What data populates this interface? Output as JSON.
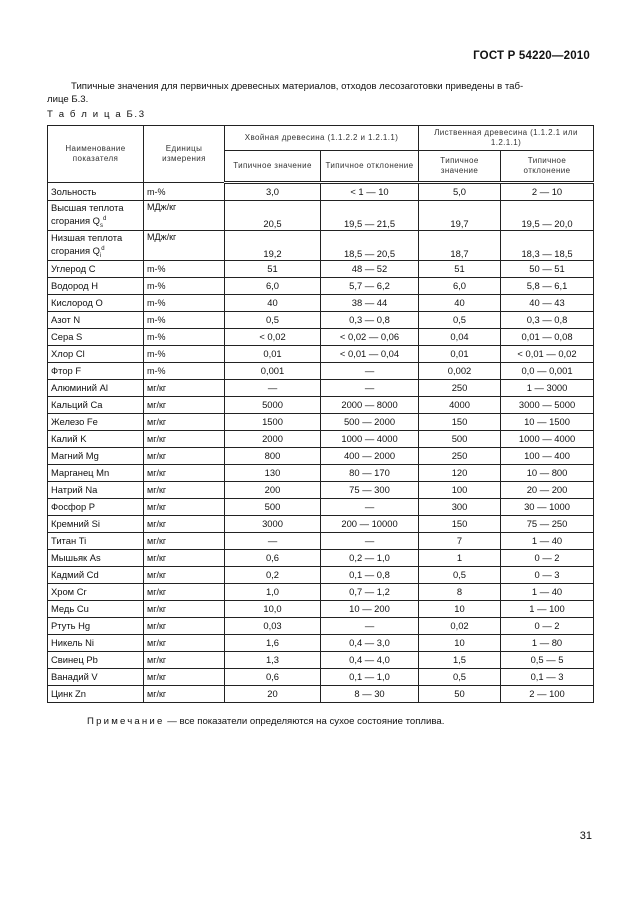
{
  "header": {
    "standard": "ГОСТ Р 54220—2010"
  },
  "intro": {
    "text": "Типичные значения  для первичных древесных материалов, отходов лесозаготовки приведены в таб-",
    "text2": "лице Б.3."
  },
  "table": {
    "caption": "Т а б л и ц а Б.3",
    "headers": {
      "name": "Наименование показателя",
      "unit": "Единицы измерения",
      "coniferous": "Хвойная древесина (1.1.2.2 и 1.2.1.1)",
      "deciduous": "Лиственная древесина (1.1.2.1 или 1.2.1.1)",
      "typical_value": "Типичное значение",
      "typical_deviation": "Типичное отклонение"
    },
    "rows": [
      {
        "name": "Зольность",
        "unit": "m-%",
        "c_val": "3,0",
        "c_dev": "< 1 — 10",
        "d_val": "5,0",
        "d_dev": "2 — 10"
      },
      {
        "name": "Высшая теплота сгорания Q",
        "sub": "s",
        "sup": "d",
        "unit": "МДж/кг",
        "c_val": "20,5",
        "c_dev": "19,5 — 21,5",
        "d_val": "19,7",
        "d_dev": "19,5 — 20,0"
      },
      {
        "name": "Низшая теплота сгорания Q",
        "sub": "i",
        "sup": "d",
        "unit": "МДж/кг",
        "c_val": "19,2",
        "c_dev": "18,5 — 20,5",
        "d_val": "18,7",
        "d_dev": "18,3 — 18,5"
      },
      {
        "name": "Углерод C",
        "unit": "m-%",
        "c_val": "51",
        "c_dev": "48 — 52",
        "d_val": "51",
        "d_dev": "50 — 51"
      },
      {
        "name": "Водород H",
        "unit": "m-%",
        "c_val": "6,0",
        "c_dev": "5,7 — 6,2",
        "d_val": "6,0",
        "d_dev": "5,8 — 6,1"
      },
      {
        "name": "Кислород O",
        "unit": "m-%",
        "c_val": "40",
        "c_dev": "38 — 44",
        "d_val": "40",
        "d_dev": "40 — 43"
      },
      {
        "name": "Азот N",
        "unit": "m-%",
        "c_val": "0,5",
        "c_dev": "0,3 — 0,8",
        "d_val": "0,5",
        "d_dev": "0,3 — 0,8"
      },
      {
        "name": "Сера S",
        "unit": "m-%",
        "c_val": "< 0,02",
        "c_dev": "< 0,02 — 0,06",
        "d_val": "0,04",
        "d_dev": "0,01 — 0,08"
      },
      {
        "name": "Хлор Cl",
        "unit": "m-%",
        "c_val": "0,01",
        "c_dev": "< 0,01 — 0,04",
        "d_val": "0,01",
        "d_dev": "< 0,01 — 0,02"
      },
      {
        "name": "Фтор F",
        "unit": "m-%",
        "c_val": "0,001",
        "c_dev": "—",
        "d_val": "0,002",
        "d_dev": "0,0 — 0,001"
      },
      {
        "name": "Алюминий Al",
        "unit": "мг/кг",
        "c_val": "—",
        "c_dev": "—",
        "d_val": "250",
        "d_dev": "1 — 3000"
      },
      {
        "name": "Кальций Ca",
        "unit": "мг/кг",
        "c_val": "5000",
        "c_dev": "2000 — 8000",
        "d_val": "4000",
        "d_dev": "3000 — 5000"
      },
      {
        "name": "Железо Fe",
        "unit": "мг/кг",
        "c_val": "1500",
        "c_dev": "500 — 2000",
        "d_val": "150",
        "d_dev": "10 — 1500"
      },
      {
        "name": "Калий K",
        "unit": "мг/кг",
        "c_val": "2000",
        "c_dev": "1000 — 4000",
        "d_val": "500",
        "d_dev": "1000 — 4000"
      },
      {
        "name": "Магний Mg",
        "unit": "мг/кг",
        "c_val": "800",
        "c_dev": "400 — 2000",
        "d_val": "250",
        "d_dev": "100 — 400"
      },
      {
        "name": "Марганец Mn",
        "unit": "мг/кг",
        "c_val": "130",
        "c_dev": "80 — 170",
        "d_val": "120",
        "d_dev": "10 — 800"
      },
      {
        "name": "Натрий Na",
        "unit": "мг/кг",
        "c_val": "200",
        "c_dev": "75 — 300",
        "d_val": "100",
        "d_dev": "20 — 200"
      },
      {
        "name": "Фосфор P",
        "unit": "мг/кг",
        "c_val": "500",
        "c_dev": "—",
        "d_val": "300",
        "d_dev": "30 — 1000"
      },
      {
        "name": "Кремний Si",
        "unit": "мг/кг",
        "c_val": "3000",
        "c_dev": "200 — 10000",
        "d_val": "150",
        "d_dev": "75 — 250"
      },
      {
        "name": "Титан Ti",
        "unit": "мг/кг",
        "c_val": "—",
        "c_dev": "—",
        "d_val": "7",
        "d_dev": "1 — 40"
      },
      {
        "name": "Мышьяк As",
        "unit": "мг/кг",
        "c_val": "0,6",
        "c_dev": "0,2 — 1,0",
        "d_val": "1",
        "d_dev": "0 — 2"
      },
      {
        "name": "Кадмий Cd",
        "unit": "мг/кг",
        "c_val": "0,2",
        "c_dev": "0,1 — 0,8",
        "d_val": "0,5",
        "d_dev": "0 — 3"
      },
      {
        "name": "Хром Cr",
        "unit": "мг/кг",
        "c_val": "1,0",
        "c_dev": "0,7 — 1,2",
        "d_val": "8",
        "d_dev": "1 — 40"
      },
      {
        "name": "Медь Cu",
        "unit": "мг/кг",
        "c_val": "10,0",
        "c_dev": "10 — 200",
        "d_val": "10",
        "d_dev": "1 — 100"
      },
      {
        "name": "Ртуть Hg",
        "unit": "мг/кг",
        "c_val": "0,03",
        "c_dev": "—",
        "d_val": "0,02",
        "d_dev": "0 — 2"
      },
      {
        "name": "Никель Ni",
        "unit": "мг/кг",
        "c_val": "1,6",
        "c_dev": "0,4 — 3,0",
        "d_val": "10",
        "d_dev": "1 — 80"
      },
      {
        "name": "Свинец Pb",
        "unit": "мг/кг",
        "c_val": "1,3",
        "c_dev": "0,4 — 4,0",
        "d_val": "1,5",
        "d_dev": "0,5 — 5"
      },
      {
        "name": "Ванадий V",
        "unit": "мг/кг",
        "c_val": "0,6",
        "c_dev": "0,1 — 1,0",
        "d_val": "0,5",
        "d_dev": "0,1 — 3"
      },
      {
        "name": "Цинк Zn",
        "unit": "мг/кг",
        "c_val": "20",
        "c_dev": "8 — 30",
        "d_val": "50",
        "d_dev": "2 — 100"
      }
    ]
  },
  "note": {
    "label": "Примечание",
    "text": " — все показатели определяются на сухое состояние топлива."
  },
  "page_number": "31"
}
